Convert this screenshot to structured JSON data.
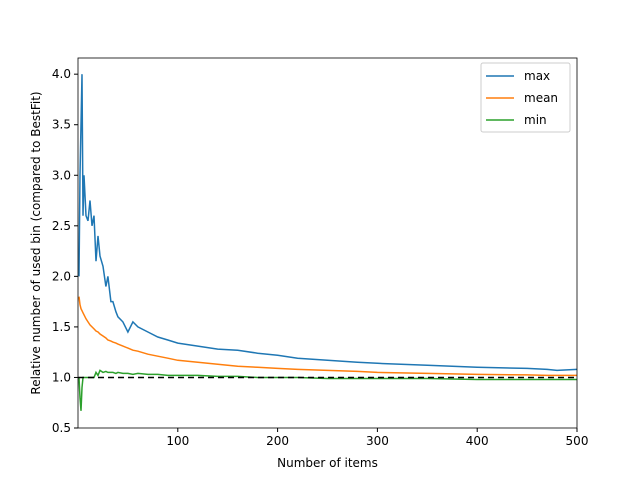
{
  "chart_data": {
    "type": "line",
    "title": "",
    "xlabel": "Number of items",
    "ylabel": "Relative number of used bin (compared to BestFit)",
    "xlim": [
      0,
      500
    ],
    "ylim": [
      0.5,
      4.16
    ],
    "xticks": [
      100,
      200,
      300,
      400,
      500
    ],
    "xtick_labels": [
      "100",
      "200",
      "300",
      "400",
      "500"
    ],
    "yticks": [
      0.5,
      1.0,
      1.5,
      2.0,
      2.5,
      3.0,
      3.5,
      4.0
    ],
    "ytick_labels": [
      "0.5",
      "1.0",
      "1.5",
      "2.0",
      "2.5",
      "3.0",
      "3.5",
      "4.0"
    ],
    "grid": false,
    "legend_position": "top-right",
    "x": [
      1,
      2,
      3,
      4,
      5,
      6,
      8,
      10,
      12,
      14,
      16,
      18,
      20,
      22,
      25,
      28,
      30,
      33,
      35,
      38,
      40,
      45,
      50,
      55,
      60,
      70,
      80,
      90,
      100,
      120,
      140,
      160,
      180,
      200,
      220,
      250,
      280,
      300,
      350,
      400,
      450,
      470,
      480,
      500
    ],
    "series": [
      {
        "name": "max",
        "color": "#1f77b4",
        "values": [
          2.0,
          3.0,
          3.5,
          4.0,
          2.6,
          3.0,
          2.6,
          2.55,
          2.75,
          2.5,
          2.6,
          2.15,
          2.4,
          2.2,
          2.1,
          1.9,
          2.0,
          1.75,
          1.75,
          1.65,
          1.6,
          1.55,
          1.45,
          1.55,
          1.5,
          1.45,
          1.4,
          1.37,
          1.34,
          1.31,
          1.28,
          1.27,
          1.24,
          1.22,
          1.19,
          1.17,
          1.15,
          1.14,
          1.12,
          1.1,
          1.09,
          1.08,
          1.07,
          1.08
        ]
      },
      {
        "name": "mean",
        "color": "#ff7f0e",
        "values": [
          1.8,
          1.72,
          1.68,
          1.66,
          1.64,
          1.62,
          1.58,
          1.55,
          1.52,
          1.5,
          1.48,
          1.46,
          1.45,
          1.43,
          1.41,
          1.39,
          1.37,
          1.36,
          1.35,
          1.34,
          1.33,
          1.31,
          1.29,
          1.27,
          1.26,
          1.23,
          1.21,
          1.19,
          1.17,
          1.15,
          1.13,
          1.11,
          1.1,
          1.09,
          1.08,
          1.07,
          1.06,
          1.05,
          1.04,
          1.03,
          1.025,
          1.02,
          1.02,
          1.02
        ]
      },
      {
        "name": "min",
        "color": "#2ca02c",
        "values": [
          1.0,
          0.8,
          0.67,
          0.9,
          1.0,
          1.0,
          1.0,
          1.0,
          1.0,
          1.0,
          1.0,
          1.05,
          1.02,
          1.07,
          1.05,
          1.06,
          1.05,
          1.05,
          1.05,
          1.04,
          1.05,
          1.04,
          1.04,
          1.03,
          1.04,
          1.03,
          1.03,
          1.02,
          1.02,
          1.02,
          1.01,
          1.01,
          1.0,
          1.0,
          1.0,
          0.99,
          0.99,
          0.99,
          0.99,
          0.98,
          0.98,
          0.98,
          0.98,
          0.98
        ]
      }
    ],
    "reference_line": {
      "y": 1.0,
      "style": "dashed",
      "color": "#000000"
    }
  }
}
